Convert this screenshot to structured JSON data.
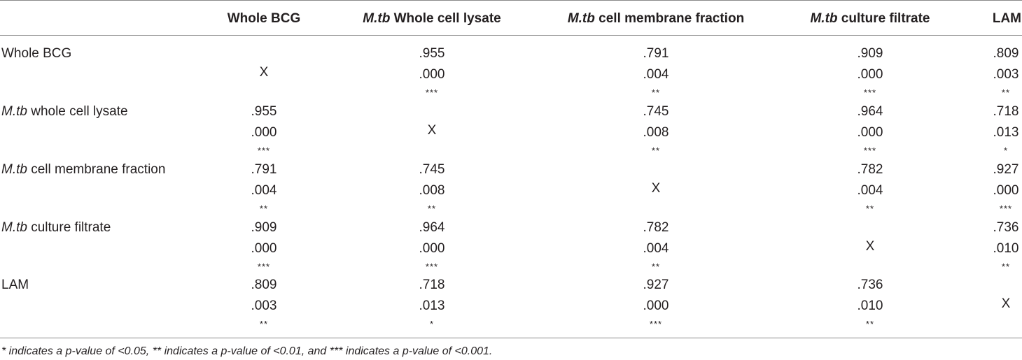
{
  "table": {
    "columns": [
      {
        "italic": "",
        "text": "Whole BCG"
      },
      {
        "italic": "M.tb",
        "text": " Whole cell lysate"
      },
      {
        "italic": "M.tb",
        "text": " cell membrane fraction"
      },
      {
        "italic": "M.tb",
        "text": " culture filtrate"
      },
      {
        "italic": "",
        "text": "LAM"
      }
    ],
    "rows": [
      {
        "italic": "",
        "label": "Whole BCG",
        "cells": [
          {
            "x": "X"
          },
          {
            "r": ".955",
            "p": ".000",
            "sig": "***"
          },
          {
            "r": ".791",
            "p": ".004",
            "sig": "**"
          },
          {
            "r": ".909",
            "p": ".000",
            "sig": "***"
          },
          {
            "r": ".809",
            "p": ".003",
            "sig": "**"
          }
        ]
      },
      {
        "italic": "M.tb",
        "label": " whole cell lysate",
        "cells": [
          {
            "r": ".955",
            "p": ".000",
            "sig": "***"
          },
          {
            "x": "X"
          },
          {
            "r": ".745",
            "p": ".008",
            "sig": "**"
          },
          {
            "r": ".964",
            "p": ".000",
            "sig": "***"
          },
          {
            "r": ".718",
            "p": ".013",
            "sig": "*"
          }
        ]
      },
      {
        "italic": "M.tb",
        "label": " cell membrane fraction",
        "cells": [
          {
            "r": ".791",
            "p": ".004",
            "sig": "**"
          },
          {
            "r": ".745",
            "p": ".008",
            "sig": "**"
          },
          {
            "x": "X"
          },
          {
            "r": ".782",
            "p": ".004",
            "sig": "**"
          },
          {
            "r": ".927",
            "p": ".000",
            "sig": "***"
          }
        ]
      },
      {
        "italic": "M.tb",
        "label": " culture filtrate",
        "cells": [
          {
            "r": ".909",
            "p": ".000",
            "sig": "***"
          },
          {
            "r": ".964",
            "p": ".000",
            "sig": "***"
          },
          {
            "r": ".782",
            "p": ".004",
            "sig": "**"
          },
          {
            "x": "X"
          },
          {
            "r": ".736",
            "p": ".010",
            "sig": "**"
          }
        ]
      },
      {
        "italic": "",
        "label": "LAM",
        "cells": [
          {
            "r": ".809",
            "p": ".003",
            "sig": "**"
          },
          {
            "r": ".718",
            "p": ".013",
            "sig": "*"
          },
          {
            "r": ".927",
            "p": ".000",
            "sig": "***"
          },
          {
            "r": ".736",
            "p": ".010",
            "sig": "**"
          },
          {
            "x": "X"
          }
        ]
      }
    ]
  },
  "footnote": "* indicates a p-value of <0.05, ** indicates a p-value of <0.01, and *** indicates a p-value of <0.001."
}
